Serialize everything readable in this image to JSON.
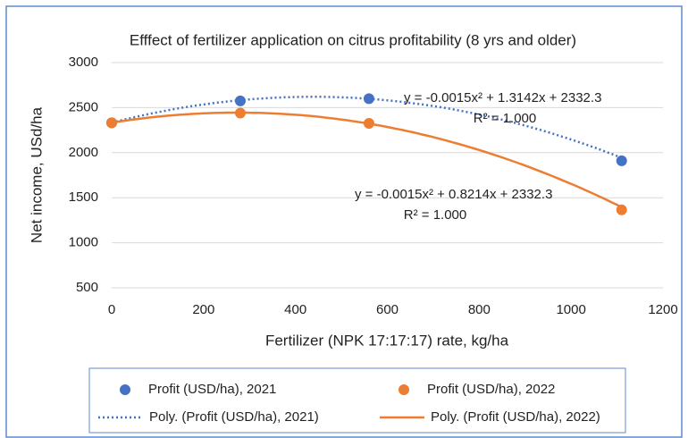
{
  "chart_data": {
    "type": "scatter",
    "title": "Efffect of fertilizer application on citrus profitability (8 yrs and older)",
    "x_label": "Fertilizer (NPK 17:17:17) rate, kg/ha",
    "y_label": "Net income, USd/ha",
    "xlim": [
      0,
      1200
    ],
    "xticks": [
      0,
      200,
      400,
      600,
      800,
      1000,
      1200
    ],
    "ylim": [
      500,
      3000
    ],
    "yticks": [
      500,
      1000,
      1500,
      2000,
      2500,
      3000
    ],
    "grid": true,
    "legend": "bottom",
    "series": [
      {
        "name": "Profit (USD/ha), 2021",
        "color": "#4472c4",
        "x": [
          0,
          280,
          560,
          1110
        ],
        "values": [
          2332,
          2575,
          2600,
          1910
        ],
        "trendline": {
          "name": "Poly. (Profit (USD/ha), 2021)",
          "style": "dotted",
          "coefficients": [
            2332.3,
            1.3142,
            -0.0015
          ],
          "equation": "y = -0.0015x² + 1.3142x + 2332.3",
          "r2": "R² = 1.000"
        }
      },
      {
        "name": "Profit (USD/ha), 2022",
        "color": "#ed7d31",
        "x": [
          0,
          280,
          560,
          1110
        ],
        "values": [
          2332,
          2440,
          2325,
          1365
        ],
        "trendline": {
          "name": "Poly. (Profit (USD/ha), 2022)",
          "style": "solid",
          "coefficients": [
            2332.3,
            0.8214,
            -0.0015
          ],
          "equation": "y = -0.0015x² + 0.8214x + 2332.3",
          "r2": "R² = 1.000"
        }
      }
    ]
  }
}
